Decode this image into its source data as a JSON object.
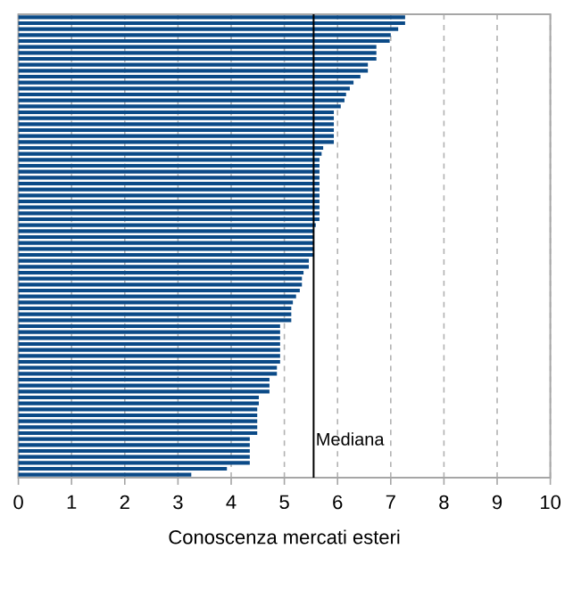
{
  "chart_data": {
    "type": "bar",
    "orientation": "horizontal",
    "xlabel": "Conoscenza mercati esteri",
    "categories": [
      null,
      null,
      null,
      null,
      null,
      null,
      null,
      null,
      null,
      null,
      null,
      null,
      null,
      null,
      null,
      null,
      null,
      null,
      null,
      null,
      null,
      null,
      null,
      null,
      null,
      null,
      null,
      null,
      null,
      null,
      null,
      null,
      null,
      null,
      null,
      null,
      null,
      null,
      null,
      null,
      null,
      null,
      null,
      null,
      null,
      null,
      null,
      null,
      null,
      null,
      null,
      null,
      null,
      null,
      null,
      null,
      null,
      null,
      null,
      null,
      null,
      null,
      null,
      null,
      null,
      null,
      null,
      null,
      null,
      null,
      null,
      null,
      null,
      null,
      null,
      null,
      null,
      null
    ],
    "values": [
      7.27,
      7.27,
      7.14,
      7.0,
      6.98,
      6.73,
      6.73,
      6.73,
      6.57,
      6.57,
      6.43,
      6.3,
      6.23,
      6.16,
      6.13,
      6.06,
      5.93,
      5.93,
      5.93,
      5.93,
      5.93,
      5.93,
      5.73,
      5.7,
      5.66,
      5.66,
      5.66,
      5.66,
      5.66,
      5.66,
      5.66,
      5.66,
      5.66,
      5.66,
      5.66,
      5.59,
      5.55,
      5.55,
      5.55,
      5.55,
      5.55,
      5.46,
      5.46,
      5.36,
      5.33,
      5.33,
      5.29,
      5.22,
      5.16,
      5.13,
      5.13,
      5.13,
      4.92,
      4.92,
      4.92,
      4.92,
      4.92,
      4.92,
      4.92,
      4.86,
      4.86,
      4.72,
      4.72,
      4.72,
      4.52,
      4.52,
      4.49,
      4.49,
      4.49,
      4.49,
      4.49,
      4.35,
      4.35,
      4.35,
      4.35,
      4.35,
      3.92,
      3.25
    ],
    "color": "#0b4a87",
    "xlim": [
      0,
      10
    ],
    "xticks": [
      0,
      1,
      2,
      3,
      4,
      5,
      6,
      7,
      8,
      9,
      10
    ],
    "grid": "x",
    "ref_lines": [
      {
        "axis": "x",
        "value": 5.55,
        "label": "Mediana",
        "color": "#000000"
      }
    ]
  }
}
